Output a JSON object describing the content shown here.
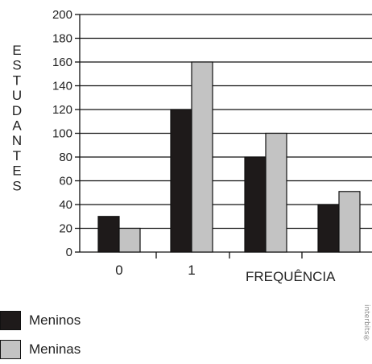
{
  "chart_data": {
    "type": "bar",
    "categories": [
      "0",
      "1",
      "",
      ""
    ],
    "series": [
      {
        "name": "Meninos",
        "color": "#1e1a1a",
        "values": [
          30,
          120,
          80,
          40
        ]
      },
      {
        "name": "Meninas",
        "color": "#c3c3c3",
        "values": [
          20,
          160,
          100,
          51
        ]
      }
    ],
    "xlabel": "FREQUÊNCIA",
    "ylabel": "ESTUDANTES",
    "ylim": [
      0,
      200
    ],
    "yticks": [
      0,
      20,
      40,
      60,
      80,
      100,
      120,
      140,
      160,
      180,
      200
    ],
    "grid": true,
    "legend_position": "bottom-left"
  },
  "watermark": "interbits®"
}
